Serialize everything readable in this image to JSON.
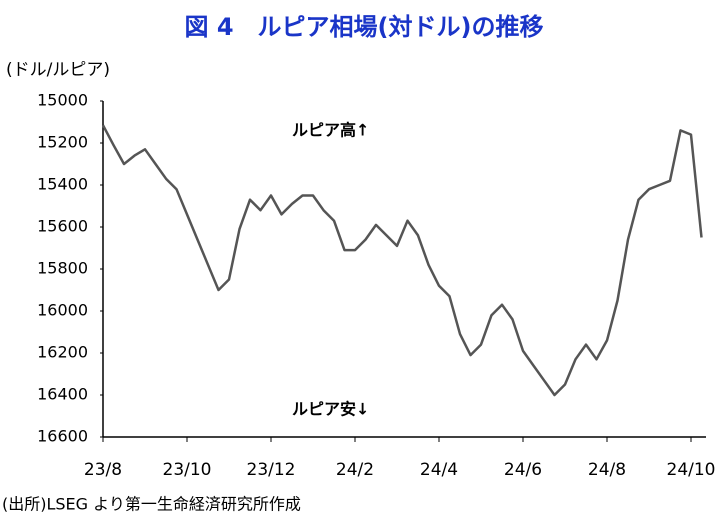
{
  "chart_data": {
    "type": "line",
    "title": "図 4　ルピア相場(対ドル)の推移",
    "y_label": "(ドル/ルピア)",
    "annotations": [
      "ルピア高↑",
      "ルピア安↓"
    ],
    "source": "(出所)LSEG より第一生命経済研究所作成",
    "categories": [
      "23/8",
      null,
      null,
      null,
      null,
      null,
      null,
      null,
      "23/10",
      null,
      null,
      null,
      null,
      null,
      null,
      null,
      "23/12",
      null,
      null,
      null,
      null,
      null,
      null,
      null,
      "24/2",
      null,
      null,
      null,
      null,
      null,
      null,
      null,
      "24/4",
      null,
      null,
      null,
      null,
      null,
      null,
      null,
      "24/6",
      null,
      null,
      null,
      null,
      null,
      null,
      null,
      "24/8",
      null,
      null,
      null,
      null,
      null,
      null,
      null,
      "24/10",
      null
    ],
    "series": [
      {
        "color": "#555555",
        "values": [
          15115,
          15210,
          15300,
          15260,
          15230,
          15300,
          15370,
          15420,
          15540,
          15660,
          15780,
          15900,
          15850,
          15610,
          15470,
          15520,
          15450,
          15540,
          15490,
          15450,
          15450,
          15520,
          15570,
          15710,
          15710,
          15660,
          15590,
          15640,
          15690,
          15570,
          15640,
          15780,
          15880,
          15930,
          16110,
          16210,
          16160,
          16020,
          15970,
          16040,
          16190,
          16260,
          16330,
          16400,
          16350,
          16230,
          16160,
          16230,
          16140,
          15950,
          15660,
          15470,
          15420,
          15400,
          15380,
          15140,
          15160,
          15650
        ]
      }
    ],
    "ylim": [
      15000,
      16600
    ],
    "yticks": [
      15000,
      15200,
      15400,
      15600,
      15800,
      16000,
      16200,
      16400,
      16600
    ],
    "y_inverted": true,
    "grid": false
  }
}
